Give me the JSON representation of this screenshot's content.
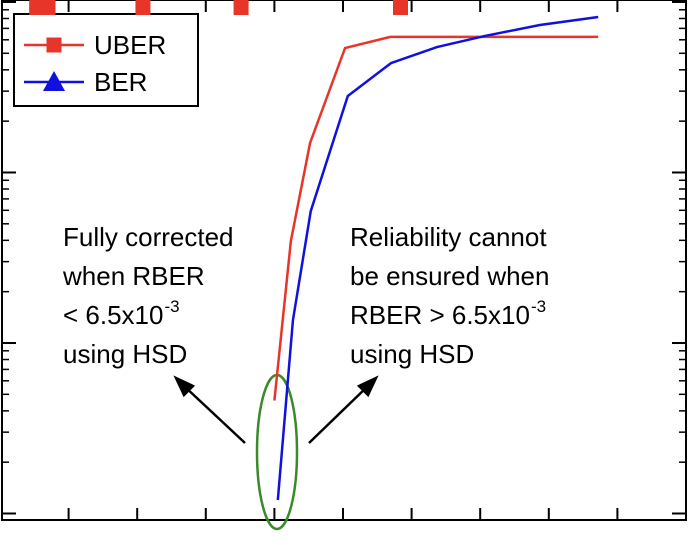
{
  "chart_data": {
    "type": "line",
    "log_y": true,
    "xlim": [
      0,
      10
    ],
    "xticks": [
      1,
      2,
      3,
      4,
      5,
      6,
      7,
      8,
      9
    ],
    "ylim": [
      9.16e-10,
      1.027e-06
    ],
    "yticks": [
      1e-09,
      1e-08,
      1e-07,
      1e-06
    ],
    "legend": "upper left",
    "series": [
      {
        "name": "UBER",
        "color": "#e8352a",
        "marker": "square",
        "x": [
          4.0,
          4.24,
          4.52,
          5.03,
          5.69,
          6.34,
          7.03,
          7.87,
          8.72
        ],
        "values": [
          4.6e-09,
          3.96e-08,
          1.49e-07,
          5.37e-07,
          6.24e-07,
          6.24e-07,
          6.24e-07,
          6.24e-07,
          6.24e-07
        ]
      },
      {
        "name": "BER",
        "color": "#1010e0",
        "marker": "triangle",
        "x": [
          4.05,
          4.27,
          4.53,
          5.07,
          5.7,
          6.37,
          7.07,
          7.87,
          8.72
        ],
        "values": [
          1.2e-09,
          1.36e-08,
          5.94e-08,
          2.81e-07,
          4.38e-07,
          5.44e-07,
          6.32e-07,
          7.33e-07,
          8.16e-07
        ]
      }
    ],
    "annotations": [
      {
        "lines": [
          "Fully corrected",
          "when RBER",
          "< 6.5x10",
          "using HSD"
        ],
        "superscript": "-3"
      },
      {
        "lines": [
          "Reliability cannot",
          "be ensured when",
          "RBER > 6.5x10",
          "using HSD"
        ],
        "superscript": "-3"
      }
    ]
  }
}
